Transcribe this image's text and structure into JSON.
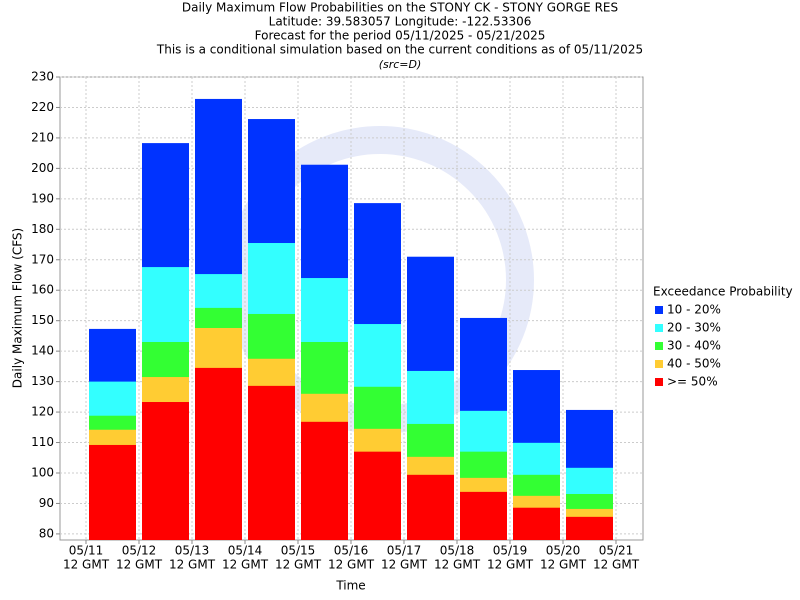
{
  "chart_data": {
    "type": "bar",
    "title_lines": [
      "Daily Maximum Flow Probabilities on the STONY CK - STONY GORGE RES",
      "Latitude: 39.583057 Longitude: -122.53306",
      "Forecast for the period 05/11/2025 - 05/21/2025",
      "This is a conditional simulation based on the current conditions as of 05/11/2025"
    ],
    "subtitle": "(src=D)",
    "x_label": "Time",
    "y_label": "Daily Maximum Flow (CFS)",
    "xtick_labels": [
      [
        "05/11",
        "12 GMT"
      ],
      [
        "05/12",
        "12 GMT"
      ],
      [
        "05/13",
        "12 GMT"
      ],
      [
        "05/14",
        "12 GMT"
      ],
      [
        "05/15",
        "12 GMT"
      ],
      [
        "05/16",
        "12 GMT"
      ],
      [
        "05/17",
        "12 GMT"
      ],
      [
        "05/18",
        "12 GMT"
      ],
      [
        "05/19",
        "12 GMT"
      ],
      [
        "05/20",
        "12 GMT"
      ],
      [
        "05/21",
        "12 GMT"
      ]
    ],
    "ylim": [
      78,
      230
    ],
    "yticks": [
      80,
      90,
      100,
      110,
      120,
      130,
      140,
      150,
      160,
      170,
      180,
      190,
      200,
      210,
      220,
      230
    ],
    "grid": true,
    "legend_title": "Exceedance Probability",
    "legend_position": "right",
    "series": [
      {
        "name": "10 - 20%",
        "color": "#0033ff",
        "values": [
          147.3,
          208.3,
          222.8,
          216.2,
          201.2,
          188.6,
          171,
          150.9,
          133.8,
          120.7
        ]
      },
      {
        "name": "20 - 30%",
        "color": "#33ffff",
        "values": [
          130,
          167.6,
          165.3,
          175.5,
          164,
          148.9,
          133.5,
          120.4,
          109.9,
          101.7
        ]
      },
      {
        "name": "30 - 40%",
        "color": "#33ff33",
        "values": [
          118.8,
          143,
          154.2,
          152.2,
          143,
          128.3,
          116.1,
          107,
          99.4,
          93.1
        ]
      },
      {
        "name": "40 - 50%",
        "color": "#ffcc33",
        "values": [
          114.2,
          131.5,
          147.6,
          137.5,
          126,
          114.5,
          105.3,
          98.4,
          92.5,
          88.2
        ]
      },
      {
        "name": ">= 50%",
        "color": "#ff0000",
        "values": [
          109.2,
          123.3,
          134.5,
          128.6,
          116.8,
          107,
          99.4,
          93.8,
          88.6,
          85.6
        ]
      }
    ]
  }
}
